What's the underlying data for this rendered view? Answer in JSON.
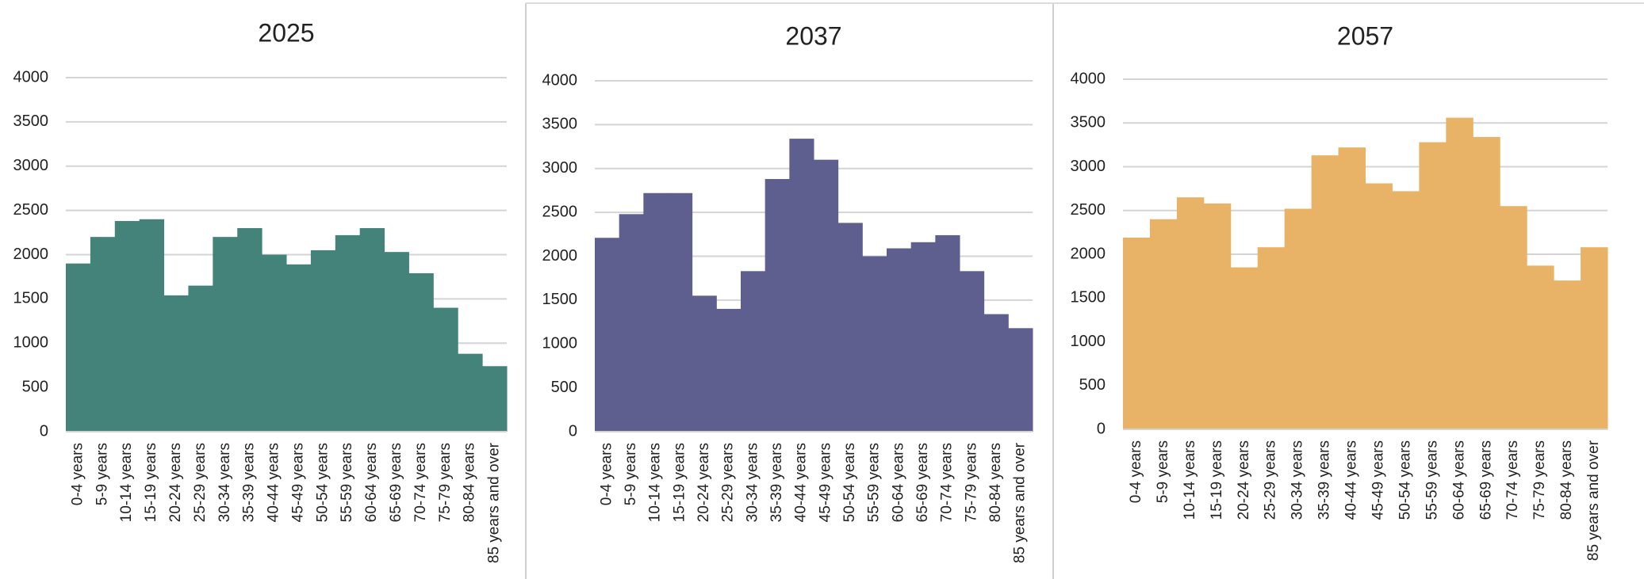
{
  "chart_data": [
    {
      "type": "bar",
      "title": "2025",
      "color": "#44837a",
      "grid": true,
      "categories": [
        "0-4 years",
        "5-9 years",
        "10-14 years",
        "15-19 years",
        "20-24 years",
        "25-29 years",
        "30-34 years",
        "35-39 years",
        "40-44 years",
        "45-49 years",
        "50-54 years",
        "55-59 years",
        "60-64 years",
        "65-69 years",
        "70-74 years",
        "75-79 years",
        "80-84 years",
        "85 years and over"
      ],
      "values": [
        1900,
        2200,
        2380,
        2400,
        1540,
        1650,
        2200,
        2300,
        2000,
        1890,
        2050,
        2220,
        2300,
        2030,
        1790,
        1400,
        880,
        740
      ],
      "ylim": [
        0,
        4000
      ],
      "yticks": [
        0,
        500,
        1000,
        1500,
        2000,
        2500,
        3000,
        3500,
        4000
      ]
    },
    {
      "type": "bar",
      "title": "2037",
      "color": "#5e5f8f",
      "grid": true,
      "categories": [
        "0-4 years",
        "5-9 years",
        "10-14 years",
        "15-19 years",
        "20-24 years",
        "25-29 years",
        "30-34 years",
        "35-39 years",
        "40-44 years",
        "45-49 years",
        "50-54 years",
        "55-59 years",
        "60-64 years",
        "65-69 years",
        "70-74 years",
        "75-79 years",
        "80-84 years",
        "85 years and over"
      ],
      "values": [
        2210,
        2480,
        2720,
        2720,
        1550,
        1400,
        1830,
        2880,
        3340,
        3100,
        2380,
        2000,
        2090,
        2160,
        2240,
        1830,
        1340,
        1180
      ],
      "ylim": [
        0,
        4000
      ],
      "yticks": [
        0,
        500,
        1000,
        1500,
        2000,
        2500,
        3000,
        3500,
        4000
      ]
    },
    {
      "type": "bar",
      "title": "2057",
      "color": "#e8b367",
      "grid": true,
      "categories": [
        "0-4 years",
        "5-9 years",
        "10-14 years",
        "15-19 years",
        "20-24 years",
        "25-29 years",
        "30-34 years",
        "35-39 years",
        "40-44 years",
        "45-49 years",
        "50-54 years",
        "55-59 years",
        "60-64 years",
        "65-69 years",
        "70-74 years",
        "75-79 years",
        "80-84 years",
        "85 years and over"
      ],
      "values": [
        2190,
        2400,
        2650,
        2580,
        1850,
        2080,
        2520,
        3130,
        3220,
        2810,
        2720,
        3280,
        3560,
        3340,
        2550,
        1870,
        1700,
        2080
      ],
      "ylim": [
        0,
        4000
      ],
      "yticks": [
        0,
        500,
        1000,
        1500,
        2000,
        2500,
        3000,
        3500,
        4000
      ]
    }
  ]
}
